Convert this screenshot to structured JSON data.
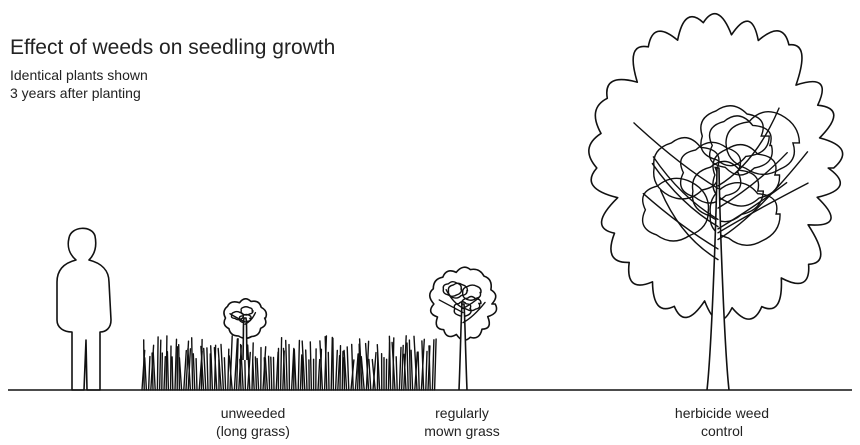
{
  "title": "Effect of weeds on seedling growth",
  "subtitle": [
    "Identical plants shown",
    "3 years after planting"
  ],
  "panels": [
    {
      "label": [
        "unweeded",
        "(long grass)"
      ]
    },
    {
      "label": [
        "regularly",
        "mown grass"
      ]
    },
    {
      "label": [
        "herbicide weed",
        "control"
      ]
    }
  ]
}
